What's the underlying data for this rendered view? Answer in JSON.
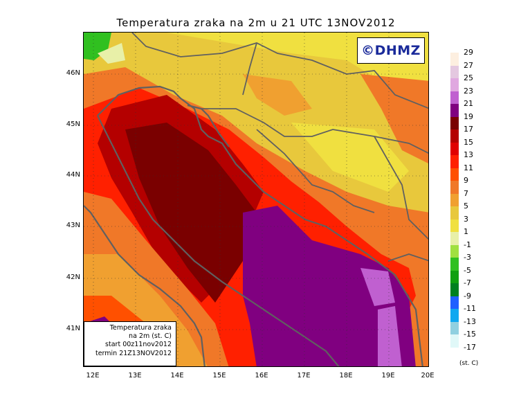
{
  "title": "Temperatura zraka na 2m u 21 UTC 13NOV2012",
  "logo": "©DHMZ",
  "info_box": {
    "line1": "Temperatura zraka",
    "line2": "na 2m (st. C)",
    "line3": "start 00z11nov2012",
    "line4": "termin 21Z13NOV2012"
  },
  "lat_labels": [
    "46N",
    "45N",
    "44N",
    "43N",
    "42N",
    "41N"
  ],
  "lon_labels": [
    "12E",
    "13E",
    "14E",
    "15E",
    "16E",
    "17E",
    "18E",
    "19E",
    "20E"
  ],
  "legend": {
    "units": "(st. C)",
    "labels": [
      "29",
      "27",
      "25",
      "23",
      "21",
      "19",
      "17",
      "15",
      "13",
      "11",
      "9",
      "7",
      "5",
      "3",
      "1",
      "-1",
      "-3",
      "-5",
      "-7",
      "-9",
      "-11",
      "-13",
      "-15",
      "-17"
    ],
    "colors": [
      "#fdefe0",
      "#e4c8e0",
      "#e0a8e0",
      "#c060d0",
      "#800080",
      "#7a0000",
      "#b40000",
      "#e00000",
      "#ff2000",
      "#ff5000",
      "#f07828",
      "#f0a030",
      "#e8c83c",
      "#f0e040",
      "#e8f0a8",
      "#a0e040",
      "#30c020",
      "#10a010",
      "#008020",
      "#2060ff",
      "#10a8f0",
      "#90d0e0",
      "#e0f8f8"
    ]
  },
  "colors": {
    "logo_text": "#1a2a9a",
    "coast_border": "#606060"
  }
}
